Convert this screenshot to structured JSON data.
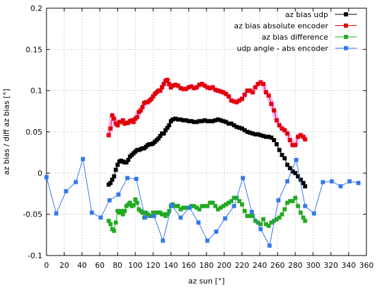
{
  "chart_data": {
    "type": "line",
    "xlabel": "az sun [°]",
    "ylabel": "az bias / diff az bias [°]",
    "xlim": [
      0,
      360
    ],
    "ylim": [
      -0.1,
      0.2
    ],
    "x_ticks": [
      "0",
      "20",
      "40",
      "60",
      "80",
      "100",
      "120",
      "140",
      "160",
      "180",
      "200",
      "220",
      "240",
      "260",
      "280",
      "300",
      "320",
      "340",
      "360"
    ],
    "y_ticks": [
      "-0.1",
      "-0.05",
      "0",
      "0.05",
      "0.1",
      "0.15",
      "0.2"
    ],
    "grid": true,
    "legend_position": "top-right",
    "series": [
      {
        "name": "az bias udp",
        "color": "#000000",
        "glow": null,
        "x": [
          70,
          72,
          74,
          76,
          78,
          80,
          82,
          84,
          86,
          88,
          90,
          92,
          94,
          96,
          98,
          100,
          102,
          104,
          106,
          108,
          110,
          112,
          114,
          116,
          118,
          120,
          122,
          124,
          126,
          128,
          130,
          132,
          134,
          136,
          138,
          140,
          142,
          145,
          148,
          151,
          154,
          157,
          160,
          163,
          166,
          169,
          172,
          175,
          178,
          181,
          184,
          187,
          190,
          193,
          196,
          199,
          202,
          205,
          208,
          211,
          214,
          217,
          220,
          223,
          226,
          229,
          232,
          235,
          238,
          241,
          244,
          247,
          250,
          253,
          256,
          259,
          262,
          265,
          268,
          271,
          274,
          277,
          280,
          283,
          286,
          289,
          291
        ],
        "y": [
          -0.014,
          -0.012,
          -0.008,
          -0.004,
          0.004,
          0.01,
          0.014,
          0.015,
          0.014,
          0.013,
          0.013,
          0.016,
          0.02,
          0.022,
          0.024,
          0.026,
          0.028,
          0.028,
          0.029,
          0.03,
          0.03,
          0.032,
          0.034,
          0.035,
          0.035,
          0.036,
          0.038,
          0.04,
          0.042,
          0.045,
          0.048,
          0.048,
          0.052,
          0.055,
          0.058,
          0.063,
          0.065,
          0.066,
          0.065,
          0.065,
          0.064,
          0.064,
          0.063,
          0.063,
          0.062,
          0.062,
          0.063,
          0.063,
          0.064,
          0.063,
          0.063,
          0.063,
          0.064,
          0.065,
          0.064,
          0.063,
          0.062,
          0.06,
          0.06,
          0.058,
          0.056,
          0.055,
          0.054,
          0.052,
          0.05,
          0.049,
          0.048,
          0.047,
          0.047,
          0.046,
          0.045,
          0.044,
          0.044,
          0.043,
          0.04,
          0.035,
          0.028,
          0.022,
          0.018,
          0.01,
          0.006,
          0.002,
          0.0,
          -0.004,
          -0.008,
          -0.012,
          -0.016
        ]
      },
      {
        "name": "az bias absolute encoder",
        "color": "#e00000",
        "glow": "#ffb3ff",
        "x": [
          70,
          72,
          74,
          76,
          78,
          80,
          82,
          84,
          86,
          88,
          90,
          92,
          94,
          96,
          98,
          100,
          102,
          104,
          106,
          108,
          110,
          112,
          114,
          116,
          118,
          120,
          122,
          124,
          126,
          128,
          130,
          132,
          134,
          136,
          138,
          140,
          142,
          145,
          148,
          151,
          154,
          157,
          160,
          163,
          166,
          169,
          172,
          175,
          178,
          181,
          184,
          187,
          190,
          193,
          196,
          199,
          202,
          205,
          208,
          211,
          214,
          217,
          220,
          223,
          226,
          229,
          232,
          235,
          238,
          241,
          244,
          247,
          250,
          253,
          256,
          259,
          262,
          265,
          268,
          271,
          274,
          277,
          280,
          283,
          286,
          289,
          291
        ],
        "y": [
          0.046,
          0.054,
          0.07,
          0.066,
          0.06,
          0.058,
          0.062,
          0.062,
          0.064,
          0.06,
          0.061,
          0.061,
          0.063,
          0.064,
          0.062,
          0.066,
          0.068,
          0.074,
          0.076,
          0.08,
          0.085,
          0.086,
          0.086,
          0.088,
          0.09,
          0.093,
          0.096,
          0.098,
          0.1,
          0.1,
          0.104,
          0.108,
          0.112,
          0.113,
          0.108,
          0.104,
          0.106,
          0.107,
          0.106,
          0.103,
          0.102,
          0.102,
          0.104,
          0.105,
          0.103,
          0.104,
          0.107,
          0.108,
          0.106,
          0.104,
          0.103,
          0.104,
          0.101,
          0.1,
          0.099,
          0.098,
          0.096,
          0.093,
          0.088,
          0.087,
          0.086,
          0.088,
          0.09,
          0.095,
          0.1,
          0.1,
          0.098,
          0.104,
          0.108,
          0.11,
          0.108,
          0.098,
          0.094,
          0.084,
          0.076,
          0.064,
          0.058,
          0.054,
          0.052,
          0.048,
          0.04,
          0.034,
          0.034,
          0.044,
          0.046,
          0.044,
          0.041
        ]
      },
      {
        "name": "az bias difference",
        "color": "#22aa22",
        "glow": null,
        "x": [
          70,
          72,
          74,
          76,
          78,
          80,
          82,
          84,
          86,
          88,
          90,
          92,
          94,
          96,
          98,
          100,
          102,
          104,
          106,
          108,
          110,
          112,
          114,
          116,
          118,
          120,
          122,
          124,
          126,
          128,
          130,
          132,
          134,
          136,
          138,
          140,
          142,
          145,
          148,
          151,
          154,
          157,
          160,
          163,
          166,
          169,
          172,
          175,
          178,
          181,
          184,
          187,
          190,
          193,
          196,
          199,
          202,
          205,
          208,
          211,
          214,
          217,
          220,
          223,
          226,
          229,
          232,
          235,
          238,
          241,
          244,
          247,
          250,
          253,
          256,
          259,
          262,
          265,
          268,
          271,
          274,
          277,
          280,
          283,
          286,
          289,
          291
        ],
        "y": [
          -0.058,
          -0.062,
          -0.068,
          -0.07,
          -0.06,
          -0.046,
          -0.048,
          -0.046,
          -0.05,
          -0.046,
          -0.04,
          -0.038,
          -0.036,
          -0.04,
          -0.039,
          -0.032,
          -0.036,
          -0.044,
          -0.046,
          -0.048,
          -0.054,
          -0.048,
          -0.05,
          -0.052,
          -0.052,
          -0.048,
          -0.048,
          -0.048,
          -0.048,
          -0.048,
          -0.05,
          -0.05,
          -0.052,
          -0.05,
          -0.046,
          -0.04,
          -0.038,
          -0.04,
          -0.04,
          -0.044,
          -0.042,
          -0.042,
          -0.042,
          -0.04,
          -0.04,
          -0.042,
          -0.044,
          -0.04,
          -0.04,
          -0.04,
          -0.036,
          -0.036,
          -0.04,
          -0.044,
          -0.042,
          -0.04,
          -0.038,
          -0.036,
          -0.034,
          -0.03,
          -0.03,
          -0.034,
          -0.038,
          -0.046,
          -0.052,
          -0.052,
          -0.052,
          -0.058,
          -0.06,
          -0.062,
          -0.056,
          -0.062,
          -0.064,
          -0.06,
          -0.058,
          -0.056,
          -0.054,
          -0.05,
          -0.044,
          -0.036,
          -0.034,
          -0.034,
          -0.03,
          -0.04,
          -0.048,
          -0.054,
          -0.058
        ]
      },
      {
        "name": "udp angle - abs encoder",
        "color": "#3377ee",
        "glow": null,
        "x": [
          0,
          11,
          22,
          33,
          41,
          51,
          61,
          71,
          81,
          91,
          101,
          111,
          121,
          131,
          141,
          151,
          161,
          171,
          181,
          191,
          201,
          211,
          221,
          231,
          241,
          251,
          261,
          271,
          281,
          291,
          301,
          311,
          321,
          331,
          341,
          351
        ],
        "y": [
          -0.005,
          -0.049,
          -0.022,
          -0.011,
          0.017,
          -0.048,
          -0.054,
          -0.033,
          -0.026,
          -0.006,
          -0.007,
          -0.054,
          -0.052,
          -0.082,
          -0.039,
          -0.054,
          -0.042,
          -0.06,
          -0.082,
          -0.071,
          -0.055,
          -0.04,
          -0.006,
          -0.047,
          -0.068,
          -0.088,
          -0.033,
          -0.01,
          0.016,
          -0.04,
          -0.049,
          -0.011,
          -0.01,
          -0.016,
          -0.01,
          -0.012
        ]
      }
    ]
  }
}
